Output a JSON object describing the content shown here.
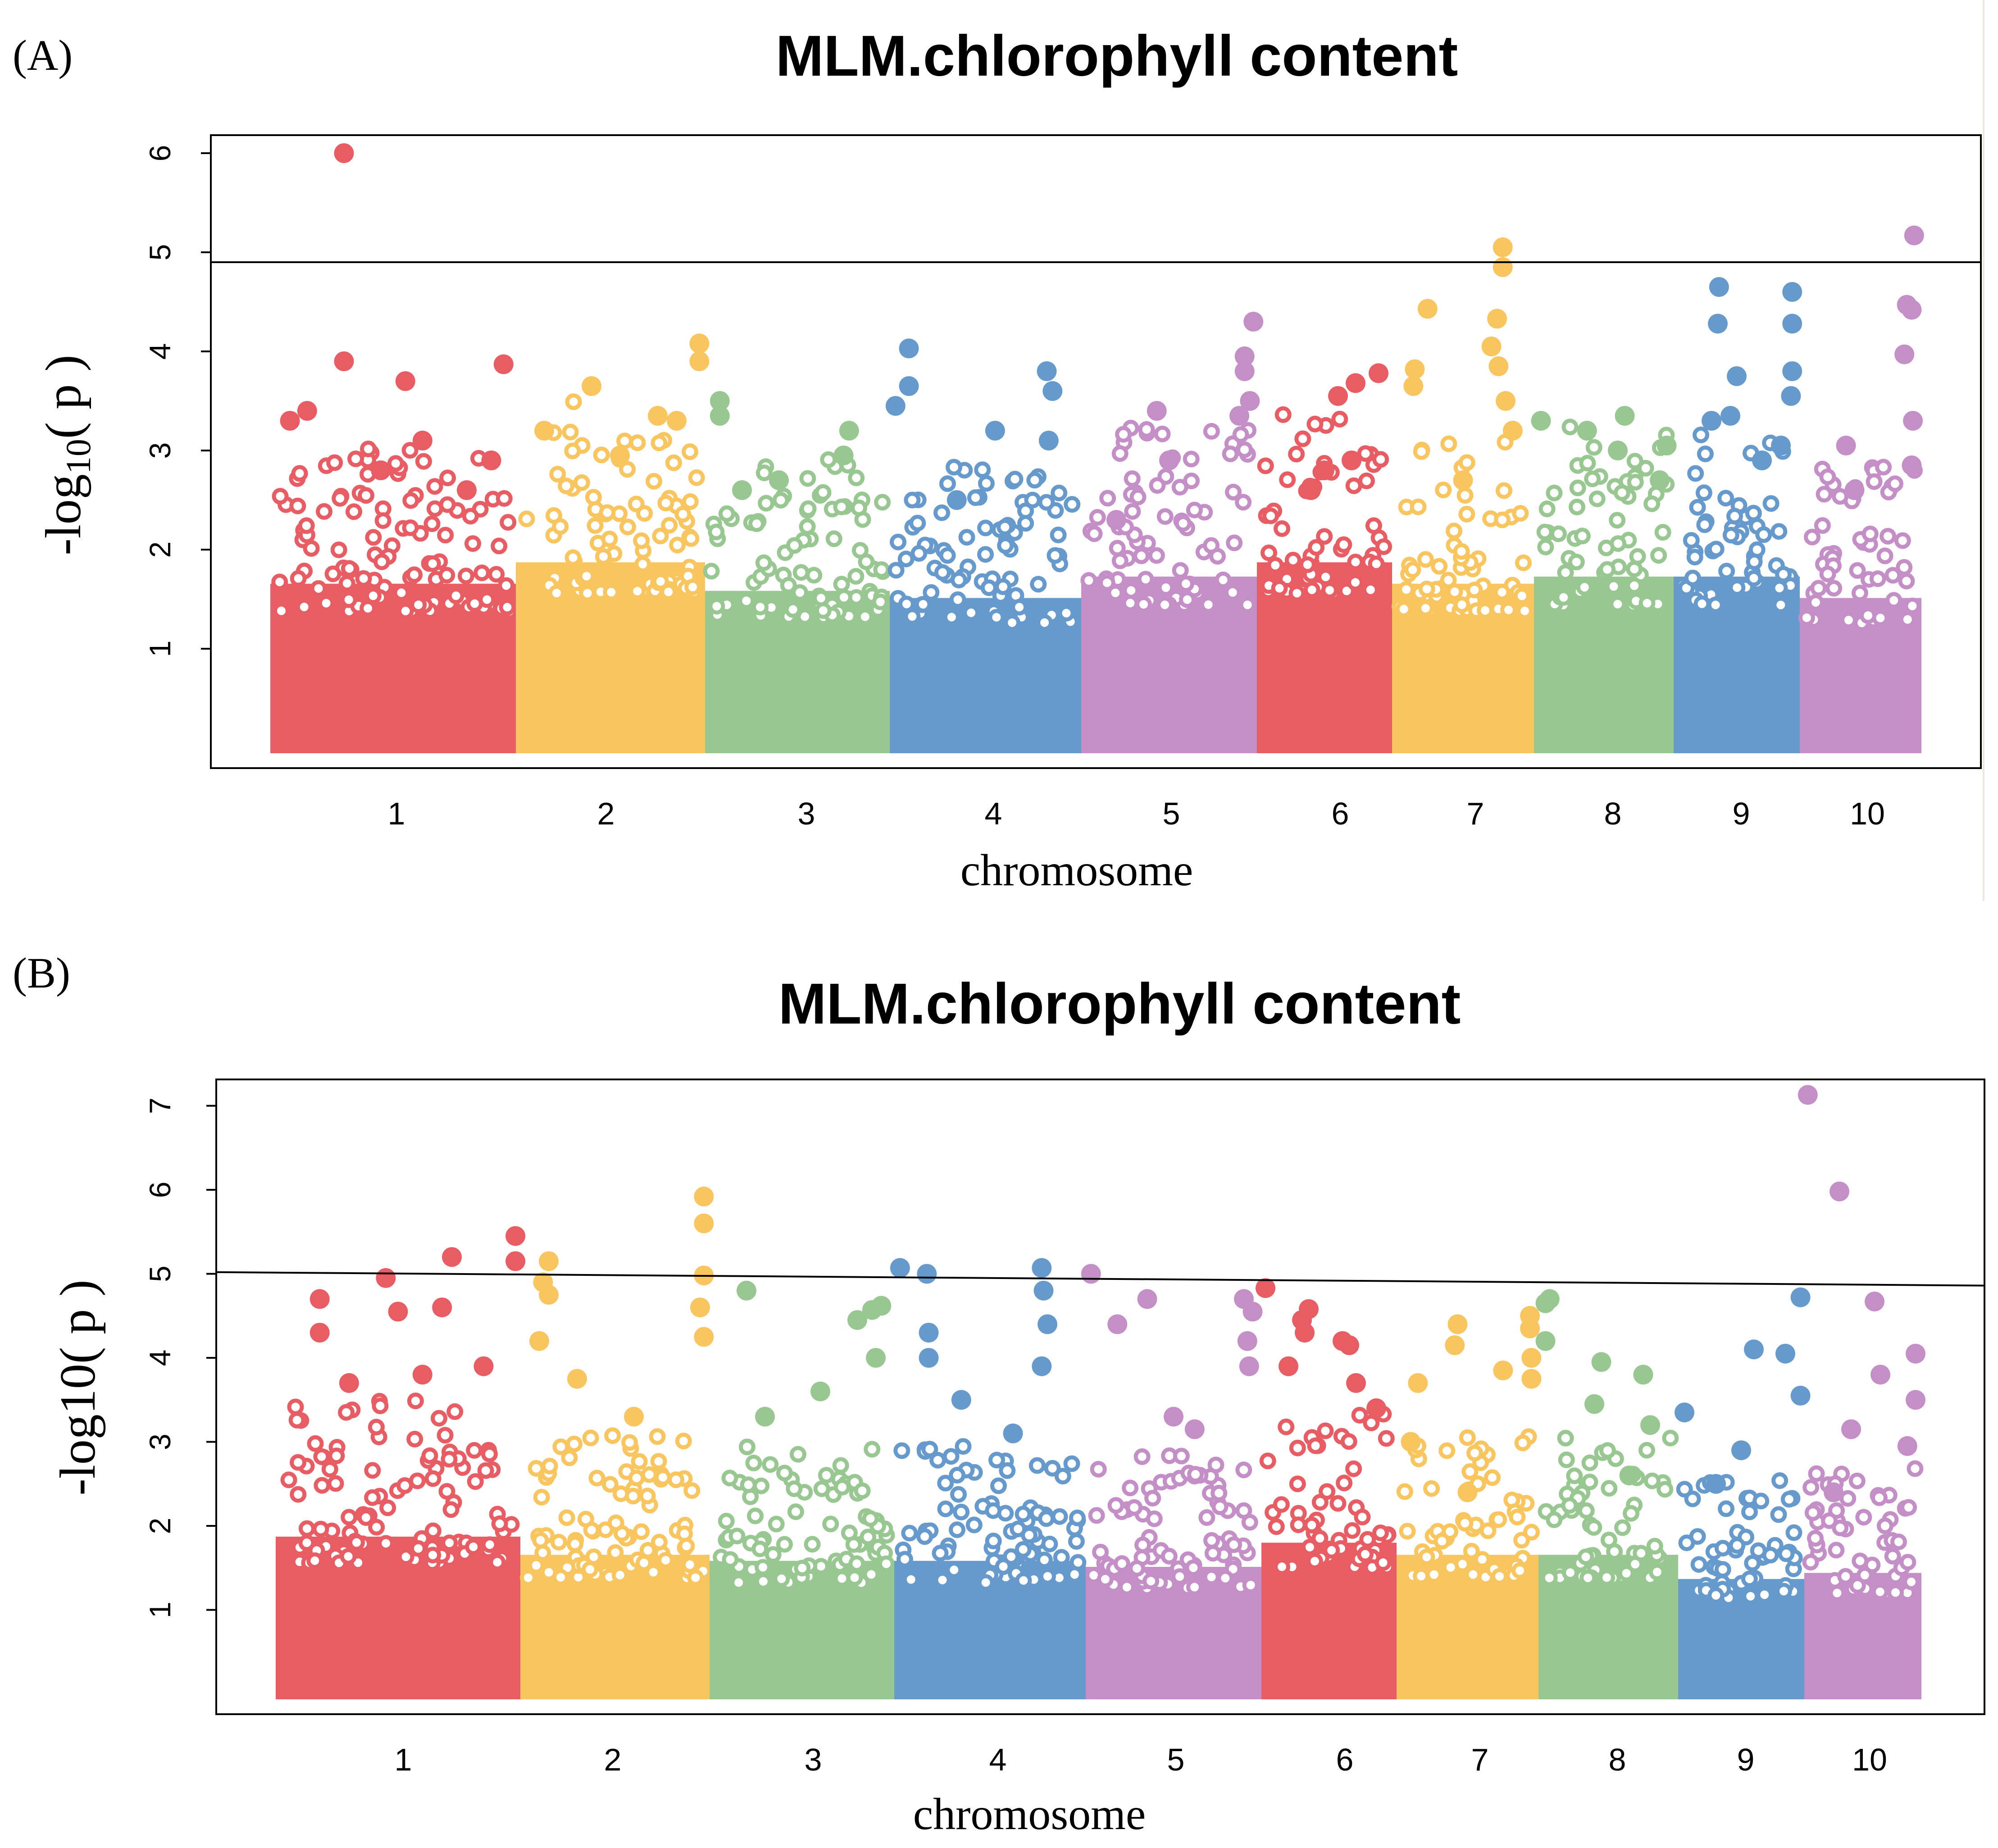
{
  "chart_data": [
    {
      "type": "scatter",
      "panel_label": "(A)",
      "title": "MLM.chlorophyll content",
      "xlabel": "chromosome",
      "ylabel_main": "-log",
      "ylabel_sub": "10",
      "ylabel_tail": "( p )",
      "ylim": [
        0,
        6.2
      ],
      "yticks": [
        "1",
        "2",
        "3",
        "4",
        "5",
        "6"
      ],
      "xticks": [
        "1",
        "2",
        "3",
        "4",
        "5",
        "6",
        "7",
        "8",
        "9",
        "10"
      ],
      "threshold": [
        4.9,
        4.9
      ],
      "chromosome_colors": [
        "#e85c63",
        "#f8c55e",
        "#99c791",
        "#6699cc",
        "#c48fc6",
        "#e85c63",
        "#f8c55e",
        "#99c791",
        "#6699cc",
        "#c48fc6"
      ],
      "chromosomes": [
        {
          "chr": "1",
          "bulk_max": 2.3,
          "peaks": [
            [
              0.3,
              6.0
            ],
            [
              0.3,
              3.9
            ],
            [
              0.55,
              3.7
            ],
            [
              0.95,
              3.87
            ],
            [
              0.08,
              3.3
            ],
            [
              0.15,
              3.4
            ],
            [
              0.45,
              2.8
            ],
            [
              0.62,
              3.1
            ],
            [
              0.8,
              2.6
            ],
            [
              0.9,
              2.9
            ]
          ]
        },
        {
          "chr": "2",
          "bulk_max": 2.6,
          "peaks": [
            [
              0.97,
              4.08
            ],
            [
              0.97,
              3.9
            ],
            [
              0.4,
              3.65
            ],
            [
              0.75,
              3.35
            ],
            [
              0.85,
              3.3
            ],
            [
              0.15,
              3.2
            ],
            [
              0.55,
              2.95
            ]
          ]
        },
        {
          "chr": "3",
          "bulk_max": 2.2,
          "peaks": [
            [
              0.08,
              3.5
            ],
            [
              0.08,
              3.35
            ],
            [
              0.78,
              3.2
            ],
            [
              0.75,
              2.95
            ],
            [
              0.4,
              2.7
            ],
            [
              0.2,
              2.6
            ]
          ]
        },
        {
          "chr": "4",
          "bulk_max": 2.1,
          "peaks": [
            [
              0.1,
              4.03
            ],
            [
              0.1,
              3.65
            ],
            [
              0.82,
              3.8
            ],
            [
              0.85,
              3.6
            ],
            [
              0.55,
              3.2
            ],
            [
              0.03,
              3.45
            ],
            [
              0.83,
              3.1
            ],
            [
              0.35,
              2.5
            ]
          ]
        },
        {
          "chr": "5",
          "bulk_max": 2.4,
          "peaks": [
            [
              0.98,
              4.3
            ],
            [
              0.93,
              3.95
            ],
            [
              0.93,
              3.8
            ],
            [
              0.96,
              3.5
            ],
            [
              0.9,
              3.35
            ],
            [
              0.43,
              3.4
            ],
            [
              0.5,
              2.9
            ],
            [
              0.2,
              2.3
            ]
          ]
        },
        {
          "chr": "6",
          "bulk_max": 2.6,
          "peaks": [
            [
              0.9,
              3.78
            ],
            [
              0.73,
              3.68
            ],
            [
              0.6,
              3.55
            ],
            [
              0.5,
              2.8
            ],
            [
              0.4,
              2.6
            ],
            [
              0.7,
              2.9
            ]
          ]
        },
        {
          "chr": "7",
          "bulk_max": 2.3,
          "peaks": [
            [
              0.78,
              5.05
            ],
            [
              0.78,
              4.85
            ],
            [
              0.25,
              4.43
            ],
            [
              0.74,
              4.33
            ],
            [
              0.16,
              3.82
            ],
            [
              0.15,
              3.65
            ],
            [
              0.7,
              4.05
            ],
            [
              0.75,
              3.85
            ],
            [
              0.8,
              3.5
            ],
            [
              0.85,
              3.2
            ],
            [
              0.5,
              2.7
            ]
          ]
        },
        {
          "chr": "8",
          "bulk_max": 2.4,
          "peaks": [
            [
              0.65,
              3.35
            ],
            [
              0.05,
              3.3
            ],
            [
              0.38,
              3.2
            ],
            [
              0.6,
              3.0
            ],
            [
              0.95,
              3.05
            ],
            [
              0.9,
              2.7
            ]
          ]
        },
        {
          "chr": "9",
          "bulk_max": 2.4,
          "peaks": [
            [
              0.36,
              4.65
            ],
            [
              0.94,
              4.6
            ],
            [
              0.35,
              4.28
            ],
            [
              0.94,
              4.28
            ],
            [
              0.94,
              3.8
            ],
            [
              0.5,
              3.75
            ],
            [
              0.93,
              3.55
            ],
            [
              0.45,
              3.35
            ],
            [
              0.3,
              3.3
            ],
            [
              0.85,
              3.05
            ],
            [
              0.7,
              2.9
            ]
          ]
        },
        {
          "chr": "10",
          "bulk_max": 2.1,
          "peaks": [
            [
              0.94,
              5.17
            ],
            [
              0.88,
              4.47
            ],
            [
              0.92,
              4.42
            ],
            [
              0.86,
              3.97
            ],
            [
              0.93,
              3.3
            ],
            [
              0.92,
              2.85
            ],
            [
              0.38,
              3.05
            ],
            [
              0.45,
              2.6
            ]
          ]
        }
      ]
    },
    {
      "type": "scatter",
      "panel_label": "(B)",
      "title": "MLM.chlorophyll content",
      "xlabel": "chromosome",
      "ylabel_main": "-log10( p )",
      "ylim": [
        0,
        7.35
      ],
      "yticks": [
        "1",
        "2",
        "3",
        "4",
        "5",
        "6",
        "7"
      ],
      "xticks": [
        "1",
        "2",
        "3",
        "4",
        "5",
        "6",
        "7",
        "8",
        "9",
        "10"
      ],
      "threshold": [
        5.02,
        4.86
      ],
      "chromosome_colors": [
        "#e85c63",
        "#f8c55e",
        "#99c791",
        "#6699cc",
        "#c48fc6",
        "#e85c63",
        "#f8c55e",
        "#99c791",
        "#6699cc",
        "#c48fc6"
      ],
      "chromosomes": [
        {
          "chr": "1",
          "bulk_max": 2.6,
          "peaks": [
            [
              0.98,
              5.45
            ],
            [
              0.98,
              5.15
            ],
            [
              0.72,
              5.2
            ],
            [
              0.45,
              4.95
            ],
            [
              0.5,
              4.55
            ],
            [
              0.68,
              4.6
            ],
            [
              0.18,
              4.7
            ],
            [
              0.18,
              4.3
            ],
            [
              0.3,
              3.7
            ],
            [
              0.6,
              3.8
            ],
            [
              0.85,
              3.9
            ]
          ]
        },
        {
          "chr": "2",
          "bulk_max": 2.3,
          "peaks": [
            [
              0.97,
              5.92
            ],
            [
              0.97,
              5.6
            ],
            [
              0.97,
              4.98
            ],
            [
              0.95,
              4.6
            ],
            [
              0.97,
              4.25
            ],
            [
              0.15,
              5.15
            ],
            [
              0.12,
              4.9
            ],
            [
              0.15,
              4.75
            ],
            [
              0.1,
              4.2
            ],
            [
              0.3,
              3.75
            ],
            [
              0.6,
              3.3
            ]
          ]
        },
        {
          "chr": "3",
          "bulk_max": 2.2,
          "peaks": [
            [
              0.2,
              4.8
            ],
            [
              0.93,
              4.62
            ],
            [
              0.88,
              4.57
            ],
            [
              0.8,
              4.45
            ],
            [
              0.9,
              4.0
            ],
            [
              0.6,
              3.6
            ],
            [
              0.3,
              3.3
            ]
          ]
        },
        {
          "chr": "4",
          "bulk_max": 2.2,
          "peaks": [
            [
              0.03,
              5.07
            ],
            [
              0.17,
              5.0
            ],
            [
              0.77,
              5.07
            ],
            [
              0.78,
              4.8
            ],
            [
              0.8,
              4.4
            ],
            [
              0.18,
              4.3
            ],
            [
              0.18,
              4.0
            ],
            [
              0.77,
              3.9
            ],
            [
              0.35,
              3.5
            ],
            [
              0.62,
              3.1
            ]
          ]
        },
        {
          "chr": "5",
          "bulk_max": 2.1,
          "peaks": [
            [
              0.03,
              5.0
            ],
            [
              0.35,
              4.7
            ],
            [
              0.9,
              4.7
            ],
            [
              0.95,
              4.55
            ],
            [
              0.92,
              4.2
            ],
            [
              0.93,
              3.9
            ],
            [
              0.18,
              4.4
            ],
            [
              0.5,
              3.3
            ],
            [
              0.62,
              3.15
            ]
          ]
        },
        {
          "chr": "6",
          "bulk_max": 2.5,
          "peaks": [
            [
              0.03,
              4.83
            ],
            [
              0.35,
              4.58
            ],
            [
              0.3,
              4.45
            ],
            [
              0.32,
              4.3
            ],
            [
              0.6,
              4.2
            ],
            [
              0.65,
              4.15
            ],
            [
              0.7,
              3.7
            ],
            [
              0.2,
              3.9
            ],
            [
              0.85,
              3.4
            ]
          ]
        },
        {
          "chr": "7",
          "bulk_max": 2.3,
          "peaks": [
            [
              0.94,
              4.5
            ],
            [
              0.94,
              4.35
            ],
            [
              0.43,
              4.4
            ],
            [
              0.41,
              4.15
            ],
            [
              0.95,
              4.0
            ],
            [
              0.75,
              3.85
            ],
            [
              0.95,
              3.75
            ],
            [
              0.15,
              3.7
            ],
            [
              0.1,
              3.0
            ],
            [
              0.5,
              2.4
            ]
          ]
        },
        {
          "chr": "8",
          "bulk_max": 2.3,
          "peaks": [
            [
              0.08,
              4.7
            ],
            [
              0.05,
              4.65
            ],
            [
              0.05,
              4.2
            ],
            [
              0.45,
              3.95
            ],
            [
              0.75,
              3.8
            ],
            [
              0.4,
              3.45
            ],
            [
              0.8,
              3.2
            ],
            [
              0.65,
              2.6
            ]
          ]
        },
        {
          "chr": "9",
          "bulk_max": 1.9,
          "peaks": [
            [
              0.97,
              4.72
            ],
            [
              0.6,
              4.1
            ],
            [
              0.85,
              4.05
            ],
            [
              0.97,
              3.55
            ],
            [
              0.05,
              3.35
            ],
            [
              0.5,
              2.9
            ],
            [
              0.3,
              2.5
            ]
          ]
        },
        {
          "chr": "10",
          "bulk_max": 2.0,
          "peaks": [
            [
              0.03,
              7.13
            ],
            [
              0.3,
              5.98
            ],
            [
              0.6,
              4.67
            ],
            [
              0.65,
              3.8
            ],
            [
              0.95,
              4.05
            ],
            [
              0.95,
              3.5
            ],
            [
              0.4,
              3.15
            ],
            [
              0.88,
              2.95
            ],
            [
              0.25,
              2.4
            ]
          ]
        }
      ]
    }
  ]
}
